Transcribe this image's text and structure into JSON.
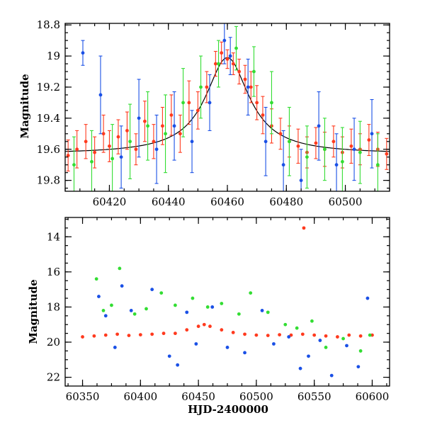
{
  "chart_data": [
    {
      "type": "scatter",
      "panel": "top",
      "ylabel": "Magnitude",
      "xlabel": "",
      "xlim": [
        60405,
        60515
      ],
      "ylim": [
        19.87,
        18.79
      ],
      "y_inverted": true,
      "xticks": [
        60420,
        60440,
        60460,
        60480,
        60500
      ],
      "yticks": [
        18.8,
        19,
        19.2,
        19.4,
        19.6,
        19.8
      ],
      "ytick_labels": [
        "18.8",
        "19",
        "19.2",
        "19.4",
        "19.6",
        "19.8"
      ],
      "series": [
        {
          "color": "#ff3a1e",
          "x": [
            60406,
            60409,
            60412,
            60415,
            60418,
            60420,
            60423,
            60426,
            60429,
            60432,
            60435,
            60438,
            60441,
            60444,
            60447,
            60450,
            60453,
            60456,
            60458,
            60460,
            60462,
            60464,
            60466,
            60468,
            60470,
            60472,
            60475,
            60478,
            60481,
            60484,
            60487,
            60490,
            60493,
            60496,
            60499,
            60502,
            60505,
            60508,
            60511,
            60514
          ],
          "y": [
            19.64,
            19.6,
            19.55,
            19.62,
            19.5,
            19.58,
            19.52,
            19.48,
            19.6,
            19.42,
            19.55,
            19.45,
            19.38,
            19.5,
            19.3,
            19.35,
            19.2,
            19.05,
            18.98,
            19.02,
            19.05,
            19.1,
            19.15,
            19.2,
            19.3,
            19.38,
            19.45,
            19.5,
            19.55,
            19.58,
            19.62,
            19.56,
            19.6,
            19.55,
            19.62,
            19.58,
            19.6,
            19.54,
            19.6,
            19.63
          ],
          "yerr": [
            0.1,
            0.12,
            0.11,
            0.1,
            0.12,
            0.1,
            0.11,
            0.12,
            0.1,
            0.13,
            0.11,
            0.12,
            0.13,
            0.12,
            0.14,
            0.12,
            0.1,
            0.08,
            0.07,
            0.06,
            0.07,
            0.08,
            0.09,
            0.1,
            0.11,
            0.12,
            0.11,
            0.1,
            0.1,
            0.11,
            0.1,
            0.1,
            0.11,
            0.1,
            0.1,
            0.11,
            0.1,
            0.1,
            0.11,
            0.1
          ]
        },
        {
          "color": "#33dd33",
          "x": [
            60408,
            60414,
            60421,
            60427,
            60433,
            60439,
            60445,
            60451,
            60457,
            60463,
            60469,
            60475,
            60481,
            60487,
            60493,
            60499,
            60505,
            60511
          ],
          "y": [
            19.7,
            19.68,
            19.66,
            19.55,
            19.45,
            19.5,
            19.3,
            19.2,
            19.05,
            18.95,
            19.1,
            19.3,
            19.55,
            19.65,
            19.6,
            19.68,
            19.62,
            19.7
          ],
          "yerr": [
            0.18,
            0.2,
            0.22,
            0.24,
            0.22,
            0.25,
            0.22,
            0.2,
            0.15,
            0.14,
            0.16,
            0.2,
            0.22,
            0.2,
            0.2,
            0.22,
            0.2,
            0.2
          ]
        },
        {
          "color": "#1a50e6",
          "x": [
            60411,
            60417,
            60424,
            60430,
            60436,
            60442,
            60448,
            60454,
            60459,
            60461,
            60467,
            60473,
            60479,
            60485,
            60491,
            60497,
            60503,
            60509
          ],
          "y": [
            18.98,
            19.25,
            19.65,
            19.4,
            19.6,
            19.45,
            19.55,
            19.3,
            18.9,
            19.0,
            19.2,
            19.55,
            19.7,
            19.8,
            19.45,
            19.7,
            19.6,
            19.5
          ],
          "yerr": [
            0.08,
            0.25,
            0.2,
            0.25,
            0.22,
            0.22,
            0.2,
            0.18,
            0.15,
            0.12,
            0.18,
            0.22,
            0.22,
            0.2,
            0.22,
            0.2,
            0.2,
            0.22
          ]
        }
      ],
      "model_curve": {
        "color": "#000000",
        "baseline": 19.63,
        "peak": 19.01,
        "t0": 60460,
        "tau": 9
      }
    },
    {
      "type": "scatter",
      "panel": "bottom",
      "xlabel": "HJD-2400000",
      "ylabel": "Magnitude",
      "xlim": [
        60335,
        60615
      ],
      "ylim": [
        22.5,
        12.9
      ],
      "y_inverted": true,
      "xticks": [
        60350,
        60400,
        60450,
        60500,
        60550,
        60600
      ],
      "yticks": [
        14,
        16,
        18,
        20,
        22
      ],
      "ytick_labels": [
        "14",
        "16",
        "18",
        "20",
        "22"
      ],
      "series": [
        {
          "color": "#ff3a1e",
          "x": [
            60350,
            60360,
            60370,
            60380,
            60390,
            60400,
            60410,
            60420,
            60430,
            60440,
            60450,
            60455,
            60460,
            60470,
            60480,
            60490,
            60500,
            60510,
            60520,
            60530,
            60540,
            60541,
            60550,
            60560,
            60570,
            60580,
            60590,
            60600
          ],
          "y": [
            19.7,
            19.65,
            19.6,
            19.55,
            19.62,
            19.58,
            19.55,
            19.5,
            19.5,
            19.3,
            19.1,
            19.0,
            19.1,
            19.3,
            19.45,
            19.55,
            19.6,
            19.62,
            19.58,
            19.6,
            19.55,
            13.5,
            19.6,
            19.65,
            19.7,
            19.6,
            19.65,
            19.6
          ]
        },
        {
          "color": "#33dd33",
          "x": [
            60362,
            60368,
            60375,
            60382,
            60395,
            60405,
            60418,
            60430,
            60445,
            60458,
            60470,
            60485,
            60495,
            60510,
            60525,
            60535,
            60548,
            60560,
            60575,
            60590,
            60598
          ],
          "y": [
            16.4,
            18.2,
            17.9,
            15.8,
            18.4,
            18.1,
            17.2,
            17.9,
            17.5,
            18.0,
            17.8,
            18.4,
            17.2,
            18.3,
            19.0,
            19.2,
            18.8,
            20.3,
            19.8,
            20.5,
            19.6
          ]
        },
        {
          "color": "#1a50e6",
          "x": [
            60364,
            60370,
            60378,
            60384,
            60392,
            60410,
            60425,
            60432,
            60440,
            60448,
            60462,
            60475,
            60490,
            60505,
            60515,
            60528,
            60538,
            60545,
            60555,
            60565,
            60578,
            60588,
            60596
          ],
          "y": [
            17.4,
            18.5,
            20.3,
            16.8,
            18.2,
            17.0,
            20.8,
            21.3,
            18.3,
            20.1,
            18.0,
            20.3,
            20.6,
            18.2,
            20.1,
            19.7,
            21.5,
            20.8,
            19.9,
            21.9,
            20.2,
            21.4,
            17.5
          ]
        }
      ]
    }
  ]
}
